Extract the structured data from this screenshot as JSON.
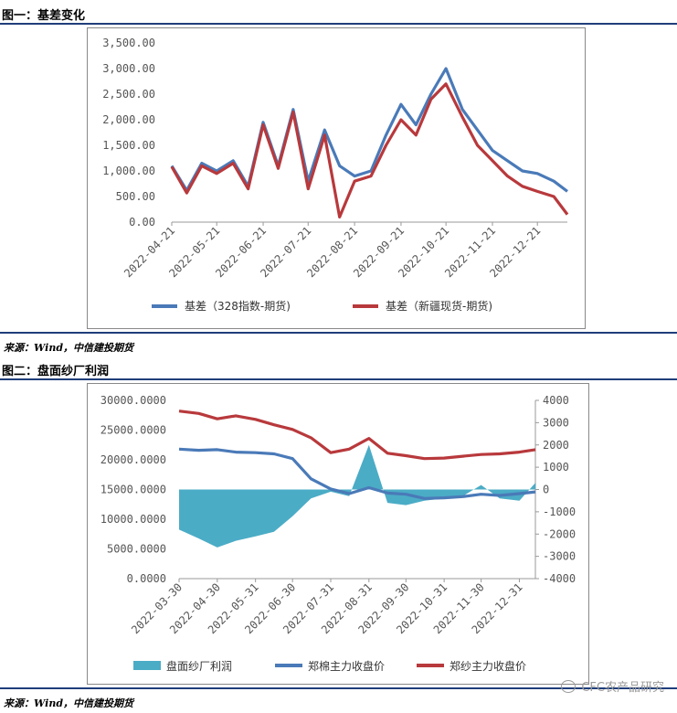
{
  "figure1": {
    "title": "图一：基差变化",
    "source": "来源：Wind，中信建投期货"
  },
  "figure2": {
    "title": "图二：盘面纱厂利润",
    "source": "来源：Wind，中信建投期货"
  },
  "watermark": "CFC农产品研究",
  "colors": {
    "blue": "#4a7ab8",
    "red": "#b8393c",
    "teal": "#4bacc6",
    "rule": "#1f3e7a"
  },
  "chart_data": [
    {
      "type": "line",
      "x": [
        "2022-04-21",
        "2022-05-01",
        "2022-05-11",
        "2022-05-21",
        "2022-06-01",
        "2022-06-11",
        "2022-06-21",
        "2022-07-01",
        "2022-07-11",
        "2022-07-21",
        "2022-08-01",
        "2022-08-11",
        "2022-08-21",
        "2022-09-01",
        "2022-09-11",
        "2022-09-21",
        "2022-10-01",
        "2022-10-11",
        "2022-10-21",
        "2022-11-01",
        "2022-11-11",
        "2022-11-21",
        "2022-12-01",
        "2022-12-11",
        "2022-12-21",
        "2023-01-01",
        "2023-01-10"
      ],
      "xticks": [
        "2022-04-21",
        "2022-05-21",
        "2022-06-21",
        "2022-07-21",
        "2022-08-21",
        "2022-09-21",
        "2022-10-21",
        "2022-11-21",
        "2022-12-21"
      ],
      "ylim": [
        0,
        3500
      ],
      "yticks": [
        "0.00",
        "500.00",
        "1,000.00",
        "1,500.00",
        "2,000.00",
        "2,500.00",
        "3,000.00",
        "3,500.00"
      ],
      "series": [
        {
          "name": "基差（328指数-期货)",
          "color": "#4a7ab8",
          "values": [
            1100,
            620,
            1150,
            1000,
            1200,
            700,
            1950,
            1100,
            2200,
            800,
            1800,
            1100,
            900,
            1000,
            1700,
            2300,
            1900,
            2500,
            3000,
            2200,
            1800,
            1400,
            1200,
            1000,
            950,
            800,
            600
          ]
        },
        {
          "name": "基差（新疆现货-期货)",
          "color": "#b8393c",
          "values": [
            1080,
            570,
            1100,
            950,
            1150,
            650,
            1900,
            1050,
            2150,
            650,
            1700,
            100,
            800,
            900,
            1500,
            2000,
            1700,
            2400,
            2700,
            2050,
            1500,
            1200,
            900,
            700,
            600,
            500,
            150
          ]
        }
      ]
    },
    {
      "type": "line",
      "x": [
        "2022-03-30",
        "2022-04-15",
        "2022-04-30",
        "2022-05-15",
        "2022-05-31",
        "2022-06-15",
        "2022-06-30",
        "2022-07-15",
        "2022-07-31",
        "2022-08-15",
        "2022-08-31",
        "2022-09-15",
        "2022-09-30",
        "2022-10-15",
        "2022-10-31",
        "2022-11-15",
        "2022-11-30",
        "2022-12-15",
        "2022-12-31",
        "2023-01-13"
      ],
      "xticks": [
        "2022-03-30",
        "2022-04-30",
        "2022-05-31",
        "2022-06-30",
        "2022-07-31",
        "2022-08-31",
        "2022-09-30",
        "2022-10-31",
        "2022-11-30",
        "2022-12-31"
      ],
      "ylim_left": [
        0,
        30000
      ],
      "yticks_left": [
        "0.0000",
        "5000.0000",
        "10000.0000",
        "15000.0000",
        "20000.0000",
        "25000.0000",
        "30000.0000"
      ],
      "ylim_right": [
        -4000,
        4000
      ],
      "yticks_right": [
        "-4000",
        "-3000",
        "-2000",
        "-1000",
        "0",
        "1000",
        "2000",
        "3000",
        "4000"
      ],
      "series": [
        {
          "name": "盘面纱厂利润",
          "type": "area",
          "axis": "right",
          "color": "#4bacc6",
          "values": [
            -1800,
            -2200,
            -2600,
            -2300,
            -2100,
            -1900,
            -1200,
            -400,
            -100,
            -300,
            2000,
            -600,
            -700,
            -500,
            -400,
            -300,
            200,
            -400,
            -500,
            300
          ]
        },
        {
          "name": "郑棉主力收盘价",
          "type": "line",
          "axis": "left",
          "color": "#4a7ab8",
          "values": [
            21800,
            21600,
            21700,
            21300,
            21200,
            21000,
            20200,
            16800,
            15100,
            14300,
            15300,
            14400,
            14200,
            13500,
            13600,
            13800,
            14200,
            14000,
            14300,
            14600
          ]
        },
        {
          "name": "郑纱主力收盘价",
          "type": "line",
          "axis": "left",
          "color": "#b8393c",
          "values": [
            28200,
            27800,
            26900,
            27400,
            26800,
            25900,
            25100,
            23700,
            21200,
            21800,
            23600,
            21100,
            20700,
            20200,
            20300,
            20600,
            20900,
            21000,
            21300,
            21700
          ]
        }
      ]
    }
  ]
}
